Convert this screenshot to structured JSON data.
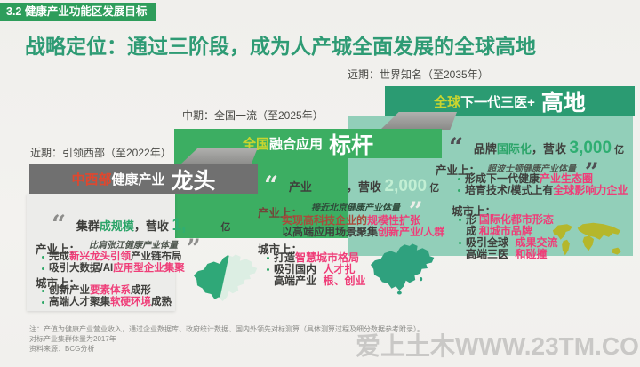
{
  "page": {
    "tag": "3.2 健康产业功能区发展目标",
    "title": "战略定位：通过三阶段，成为人产城全面发展的全球高地",
    "watermark": "爱上土木WWW.23TM.COM"
  },
  "colors": {
    "tag_green": "#2E9D5B",
    "title_green": "#2E9B74",
    "far_header": "#2B9B72",
    "far_body": "#92CFB9",
    "mid_green": "#3CAE62",
    "near_header_gray": "#707070",
    "accent_yellow": "#C9D52F",
    "accent_orange": "#E0472E",
    "highlight_pink": "#EF3D78",
    "china_mid": "#2FA17E",
    "china_west": "#2FA878",
    "china_east": "#DCEEE3",
    "world_olive": "#B5B72B"
  },
  "near": {
    "label": "近期：引领西部（至2022年）",
    "header": [
      {
        "t": "中西部",
        "c": "ha"
      },
      {
        "t": "健康产业",
        "c": "hw"
      },
      {
        "t": " 龙头",
        "c": "hbig"
      }
    ],
    "quote": [
      {
        "t": "“ ",
        "c": "qmark"
      },
      {
        "t": "集群",
        "c": "qd"
      },
      {
        "t": "成规模",
        "c": "qg"
      },
      {
        "t": "，营收 ",
        "c": "qd"
      },
      {
        "t": "1,",
        "c": "qnum"
      },
      {
        "t": "　　　",
        "c": "qd"
      },
      {
        "t": "亿",
        "c": "qunit"
      }
    ],
    "sub": [
      {
        "t": "比肩张江健康产业体量",
        "c": "sub"
      },
      {
        "t": " ”",
        "c": "qend"
      }
    ],
    "industry_label": "产业上：",
    "industry": [
      [
        {
          "t": "完成",
          "c": "d"
        },
        {
          "t": "新兴龙头引领",
          "c": "p"
        },
        {
          "t": "产业链布局",
          "c": "d"
        }
      ],
      [
        {
          "t": "吸引大数据/AI",
          "c": "d"
        },
        {
          "t": "应用型企业集聚",
          "c": "p"
        }
      ]
    ],
    "city_label": "城市上：",
    "city": [
      [
        {
          "t": "创新产业",
          "c": "d"
        },
        {
          "t": "要素体系",
          "c": "p"
        },
        {
          "t": "成形",
          "c": "d"
        }
      ],
      [
        {
          "t": "高端人才聚集",
          "c": "d"
        },
        {
          "t": "软硬环境",
          "c": "p"
        },
        {
          "t": "成熟",
          "c": "d"
        }
      ]
    ]
  },
  "mid": {
    "label": "中期：全国一流（至2025年）",
    "header": [
      {
        "t": "全国",
        "c": "hy"
      },
      {
        "t": "融合应用",
        "c": "hw"
      },
      {
        "t": " 标杆",
        "c": "hbig"
      }
    ],
    "quote": [
      {
        "t": "“ ",
        "c": "qmark"
      },
      {
        "t": "产业",
        "c": "qd"
      },
      {
        "t": "　　　",
        "c": "qd"
      },
      {
        "t": "，营收 ",
        "c": "qd"
      },
      {
        "t": "2,000",
        "c": "qnumm"
      },
      {
        "t": " 亿",
        "c": "qunit"
      }
    ],
    "sub": [
      {
        "t": "接近北京健康产业体量",
        "c": "sub"
      },
      {
        "t": " ”",
        "c": "qend"
      }
    ],
    "industry_label": "产业上：",
    "industry": [
      [
        {
          "t": "实现高科技企业的",
          "c": "r"
        },
        {
          "t": "规模性扩张",
          "c": "p"
        }
      ],
      [
        {
          "t": "以高端应用场景聚集",
          "c": "d"
        },
        {
          "t": "创新产业/人群",
          "c": "p"
        }
      ]
    ],
    "city_label": "城市上：",
    "city": [
      [
        {
          "t": "打造",
          "c": "d"
        },
        {
          "t": "智慧城市格局",
          "c": "p"
        }
      ],
      [
        {
          "t": "吸引国内高端产业",
          "c": "d"
        },
        {
          "t": "人才扎根、创业",
          "c": "p"
        }
      ]
    ]
  },
  "far": {
    "label": "远期：世界知名（至2035年）",
    "header": [
      {
        "t": "全球",
        "c": "hy"
      },
      {
        "t": "下一代三医+",
        "c": "hw"
      },
      {
        "t": " 高地",
        "c": "hbig"
      }
    ],
    "quote": [
      {
        "t": "“ ",
        "c": "qmark"
      },
      {
        "t": "品牌",
        "c": "qd"
      },
      {
        "t": "国际化",
        "c": "qg"
      },
      {
        "t": "，营收 ",
        "c": "qd"
      },
      {
        "t": "3,000",
        "c": "qnum"
      },
      {
        "t": " 亿",
        "c": "qunit"
      }
    ],
    "sub": [
      {
        "t": "超波士顿健康产业体量",
        "c": "sub"
      },
      {
        "t": " ”",
        "c": "qend"
      }
    ],
    "industry_label": "产业上：",
    "industry": [
      [
        {
          "t": "形成下一代健康",
          "c": "d"
        },
        {
          "t": "产业生态圈",
          "c": "p"
        }
      ],
      [
        {
          "t": "培育技术/模式上有",
          "c": "d"
        },
        {
          "t": "全球影响力企业",
          "c": "p"
        }
      ]
    ],
    "city_label": "城市上：",
    "city": [
      [
        {
          "t": "形成",
          "c": "d"
        },
        {
          "t": "国际化都市形态和城市品牌",
          "c": "p"
        }
      ],
      [
        {
          "t": "吸引全球高端三医",
          "c": "d"
        },
        {
          "t": "成果交流和碰撞",
          "c": "p"
        }
      ]
    ]
  },
  "notes": {
    "line1": "注：产值为健康产业营业收入，通过企业数据库、政府统计数据、国内外领先对标测算（具体测算过程及细分数据参考附录）。",
    "line2": "对标产业集群体量为2017年",
    "line3": "资料来源：BCG分析"
  }
}
